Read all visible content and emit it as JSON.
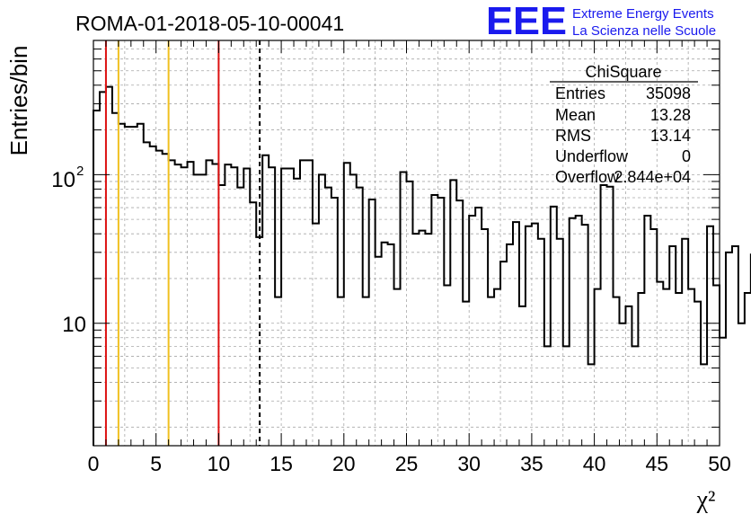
{
  "chart_data": {
    "type": "step-histogram",
    "title": "ROMA-01-2018-05-10-00041",
    "xlabel": "χ²",
    "ylabel": "Entries/bin",
    "xlim": [
      0,
      50
    ],
    "ylim": [
      1.5,
      800
    ],
    "yscale": "log",
    "grid": true,
    "bin_width": 0.5,
    "x_ticks": [
      0,
      5,
      10,
      15,
      20,
      25,
      30,
      35,
      40,
      45,
      50
    ],
    "x_tick_labels": [
      "0",
      "5",
      "10",
      "15",
      "20",
      "25",
      "30",
      "35",
      "40",
      "45",
      "50"
    ],
    "y_ticks": [
      10,
      100
    ],
    "y_tick_labels": [
      "10",
      "10",
      "2"
    ],
    "counts": [
      270,
      360,
      390,
      260,
      220,
      210,
      210,
      220,
      165,
      155,
      145,
      138,
      125,
      117,
      112,
      122,
      100,
      100,
      125,
      118,
      85,
      117,
      112,
      82,
      110,
      65,
      38,
      135,
      112,
      15,
      110,
      110,
      94,
      125,
      125,
      47,
      100,
      82,
      70,
      15,
      120,
      100,
      82,
      15,
      68,
      28,
      35,
      34,
      17,
      104,
      90,
      40,
      42,
      40,
      73,
      70,
      18,
      92,
      67,
      14,
      53,
      60,
      43,
      15,
      17,
      26,
      34,
      48,
      13,
      45,
      47,
      37,
      7,
      61,
      37,
      7,
      51,
      53,
      46,
      5.3,
      17,
      85,
      83,
      15,
      10,
      13,
      7,
      16,
      53,
      43,
      19,
      17,
      33,
      16,
      37,
      17,
      14,
      5.3,
      45,
      18,
      8,
      30,
      33,
      10,
      16,
      29,
      40,
      25,
      15,
      27,
      20,
      10,
      21,
      16,
      20,
      20,
      12,
      8,
      17,
      30,
      17,
      23,
      11,
      30,
      28,
      5.3,
      36,
      37,
      29,
      17,
      31,
      12,
      8,
      15,
      12,
      20,
      24,
      18,
      9,
      16,
      30,
      26,
      34,
      29,
      18,
      5,
      42,
      20,
      7,
      13
    ],
    "vertical_lines": [
      {
        "x": 1,
        "color": "#dd1111",
        "style": "solid"
      },
      {
        "x": 2,
        "color": "#f0c020",
        "style": "solid"
      },
      {
        "x": 6,
        "color": "#f0c020",
        "style": "solid"
      },
      {
        "x": 10,
        "color": "#dd1111",
        "style": "solid"
      },
      {
        "x": 13.28,
        "color": "#000000",
        "style": "dashed"
      }
    ],
    "stats_box": {
      "title": "ChiSquare",
      "rows": [
        {
          "label": "Entries",
          "value": "35098"
        },
        {
          "label": "Mean",
          "value": "13.28"
        },
        {
          "label": "RMS",
          "value": "13.14"
        },
        {
          "label": "Underflow",
          "value": "0"
        },
        {
          "label": "Overflow",
          "value": "2.844e+04"
        }
      ]
    },
    "logo": {
      "mark": "EEE",
      "line1": "Extreme Energy Events",
      "line2": "La Scienza nelle Scuole",
      "color": "#1a1aee"
    }
  }
}
